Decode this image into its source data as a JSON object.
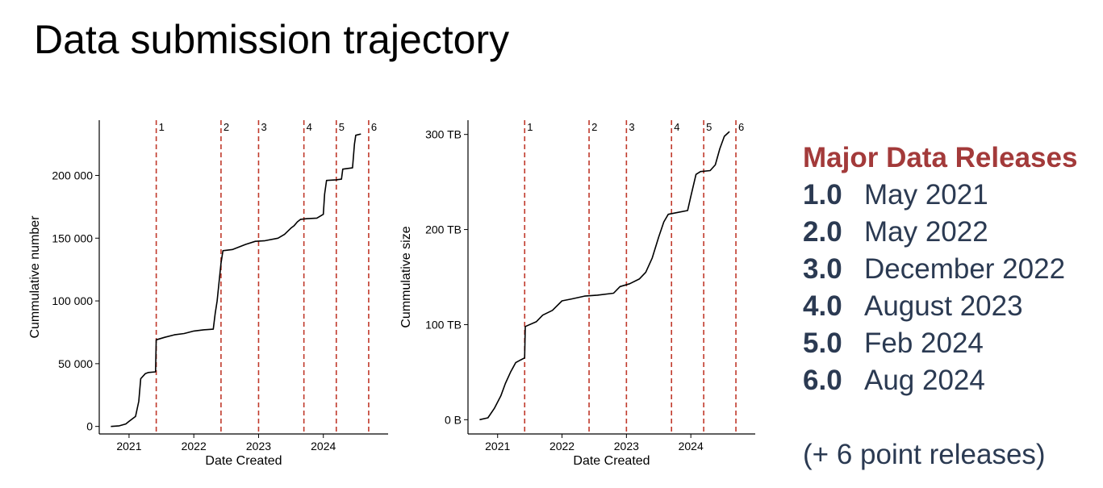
{
  "title": "Data submission trajectory",
  "legend": {
    "title": "Major Data Releases",
    "releases": [
      {
        "version": "1.0",
        "date": "May 2021"
      },
      {
        "version": "2.0",
        "date": "May 2022"
      },
      {
        "version": "3.0",
        "date": "December 2022"
      },
      {
        "version": "4.0",
        "date": "August 2023"
      },
      {
        "version": "5.0",
        "date": "Feb 2024"
      },
      {
        "version": "6.0",
        "date": "Aug 2024"
      }
    ],
    "note": "(+ 6 point releases)",
    "title_color": "#a33a3a",
    "text_color": "#2b3a52"
  },
  "chart_data": [
    {
      "type": "line",
      "xlabel": "Date Created",
      "ylabel": "Cummulative number",
      "x_ticks": [
        2021,
        2022,
        2023,
        2024
      ],
      "y_ticks": [
        {
          "value": 0,
          "label": "0"
        },
        {
          "value": 50000,
          "label": "50 000"
        },
        {
          "value": 100000,
          "label": "100 000"
        },
        {
          "value": 150000,
          "label": "150 000"
        },
        {
          "value": 200000,
          "label": "200 000"
        }
      ],
      "xlim": [
        2020.54,
        2025.0
      ],
      "ylim": [
        -6000,
        244000
      ],
      "line_color": "#000000",
      "release_line_color": "#c0392b",
      "release_lines": [
        {
          "label": "1",
          "x": 2021.42
        },
        {
          "label": "2",
          "x": 2022.42
        },
        {
          "label": "3",
          "x": 2023.0
        },
        {
          "label": "4",
          "x": 2023.7
        },
        {
          "label": "5",
          "x": 2024.2
        },
        {
          "label": "6",
          "x": 2024.7
        }
      ],
      "points": [
        [
          2020.72,
          0
        ],
        [
          2020.85,
          500
        ],
        [
          2020.95,
          2000
        ],
        [
          2021.0,
          4000
        ],
        [
          2021.1,
          8000
        ],
        [
          2021.15,
          20000
        ],
        [
          2021.18,
          38000
        ],
        [
          2021.25,
          42000
        ],
        [
          2021.3,
          43000
        ],
        [
          2021.41,
          43500
        ],
        [
          2021.42,
          69000
        ],
        [
          2021.55,
          71000
        ],
        [
          2021.7,
          73000
        ],
        [
          2021.85,
          74000
        ],
        [
          2022.0,
          76000
        ],
        [
          2022.15,
          77000
        ],
        [
          2022.3,
          77500
        ],
        [
          2022.33,
          90000
        ],
        [
          2022.36,
          100000
        ],
        [
          2022.39,
          115000
        ],
        [
          2022.42,
          130000
        ],
        [
          2022.45,
          140000
        ],
        [
          2022.6,
          141000
        ],
        [
          2022.8,
          145000
        ],
        [
          2022.95,
          147500
        ],
        [
          2023.1,
          148000
        ],
        [
          2023.3,
          150000
        ],
        [
          2023.4,
          153000
        ],
        [
          2023.5,
          158000
        ],
        [
          2023.55,
          160000
        ],
        [
          2023.6,
          163000
        ],
        [
          2023.65,
          165000
        ],
        [
          2023.75,
          165500
        ],
        [
          2023.9,
          166000
        ],
        [
          2024.0,
          169000
        ],
        [
          2024.02,
          185000
        ],
        [
          2024.05,
          196000
        ],
        [
          2024.2,
          196500
        ],
        [
          2024.28,
          197000
        ],
        [
          2024.3,
          205000
        ],
        [
          2024.45,
          206000
        ],
        [
          2024.48,
          225000
        ],
        [
          2024.5,
          232000
        ],
        [
          2024.58,
          233000
        ]
      ]
    },
    {
      "type": "line",
      "xlabel": "Date Created",
      "ylabel": "Cummulative size",
      "x_ticks": [
        2021,
        2022,
        2023,
        2024
      ],
      "y_ticks": [
        {
          "value": 0,
          "label": "0 B"
        },
        {
          "value": 100,
          "label": "100 TB"
        },
        {
          "value": 200,
          "label": "200 TB"
        },
        {
          "value": 300,
          "label": "300 TB"
        }
      ],
      "xlim": [
        2020.54,
        2025.0
      ],
      "ylim": [
        -15,
        315
      ],
      "line_color": "#000000",
      "release_line_color": "#c0392b",
      "release_lines": [
        {
          "label": "1",
          "x": 2021.42
        },
        {
          "label": "2",
          "x": 2022.42
        },
        {
          "label": "3",
          "x": 2023.0
        },
        {
          "label": "4",
          "x": 2023.7
        },
        {
          "label": "5",
          "x": 2024.2
        },
        {
          "label": "6",
          "x": 2024.7
        }
      ],
      "points": [
        [
          2020.72,
          0
        ],
        [
          2020.85,
          2
        ],
        [
          2020.95,
          12
        ],
        [
          2021.05,
          25
        ],
        [
          2021.12,
          38
        ],
        [
          2021.2,
          50
        ],
        [
          2021.28,
          60
        ],
        [
          2021.36,
          63
        ],
        [
          2021.42,
          65
        ],
        [
          2021.43,
          98
        ],
        [
          2021.6,
          103
        ],
        [
          2021.7,
          110
        ],
        [
          2021.85,
          115
        ],
        [
          2022.0,
          125
        ],
        [
          2022.15,
          127
        ],
        [
          2022.35,
          130
        ],
        [
          2022.55,
          131
        ],
        [
          2022.8,
          133
        ],
        [
          2022.9,
          140
        ],
        [
          2023.05,
          143
        ],
        [
          2023.2,
          148
        ],
        [
          2023.3,
          155
        ],
        [
          2023.4,
          170
        ],
        [
          2023.5,
          192
        ],
        [
          2023.58,
          208
        ],
        [
          2023.65,
          216
        ],
        [
          2023.8,
          218
        ],
        [
          2023.95,
          220
        ],
        [
          2024.0,
          235
        ],
        [
          2024.08,
          258
        ],
        [
          2024.15,
          261
        ],
        [
          2024.3,
          262
        ],
        [
          2024.38,
          268
        ],
        [
          2024.45,
          285
        ],
        [
          2024.52,
          298
        ],
        [
          2024.6,
          303
        ]
      ]
    }
  ]
}
